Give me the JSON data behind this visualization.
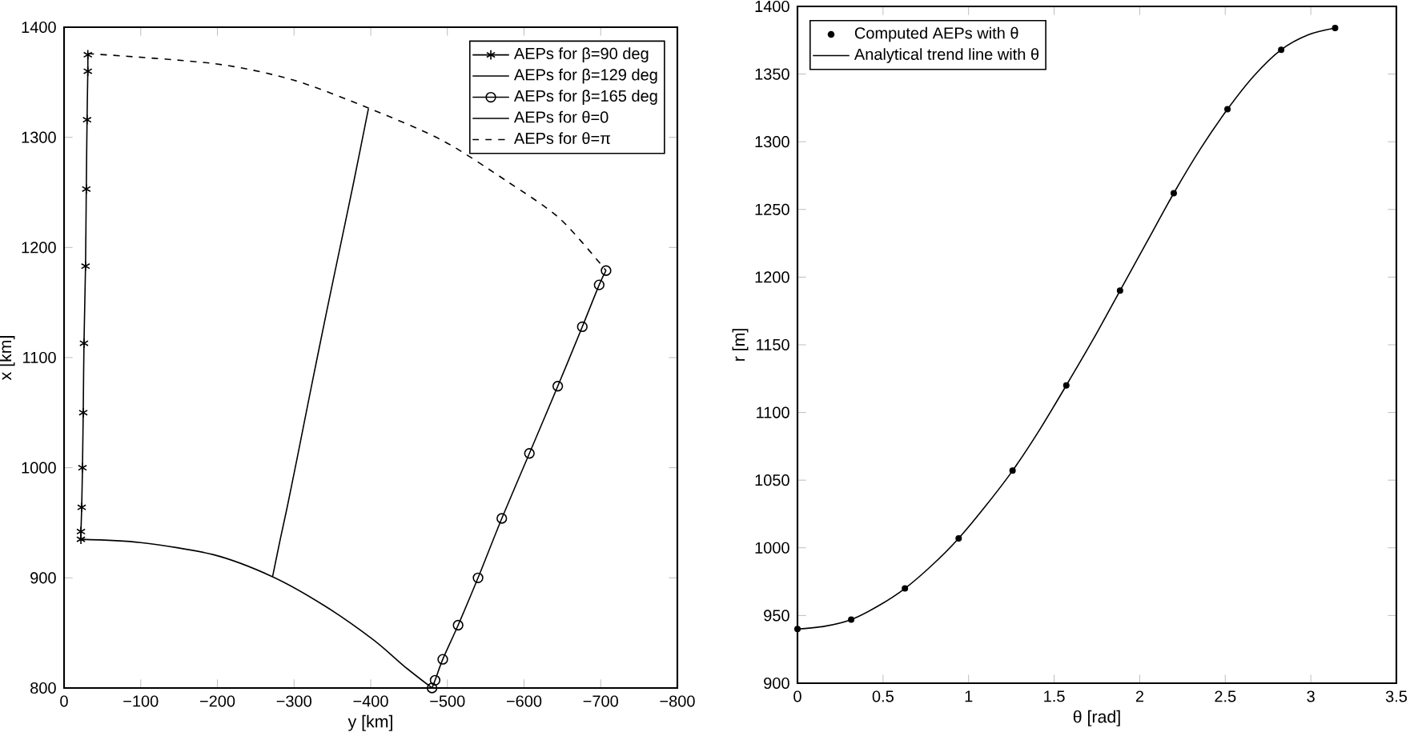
{
  "chart_data": [
    {
      "type": "line",
      "xlabel": "y [km]",
      "ylabel": "x [km]",
      "xlim": [
        0,
        -800
      ],
      "ylim": [
        800,
        1400
      ],
      "xticks": [
        0,
        {
          "value": -100,
          "label": "−100"
        },
        {
          "value": -200,
          "label": "−200"
        },
        {
          "value": -300,
          "label": "−300"
        },
        {
          "value": -400,
          "label": "−400"
        },
        {
          "value": -500,
          "label": "−500"
        },
        {
          "value": -600,
          "label": "−600"
        },
        {
          "value": -700,
          "label": "−700"
        },
        {
          "value": -800,
          "label": "−800"
        }
      ],
      "yticks": [
        800,
        900,
        1000,
        1100,
        1200,
        1300,
        1400
      ],
      "grid": false,
      "legend": "top right",
      "series": [
        {
          "name": "AEPs for β=90 deg",
          "color": "#000000",
          "marker": "cross",
          "x": [
            -31,
            -31,
            -30,
            -29,
            -28,
            -26,
            -25,
            -24,
            -23,
            -22,
            -22
          ],
          "values": [
            1375,
            1360,
            1316,
            1253,
            1183,
            1113,
            1050,
            1000,
            964,
            942,
            935
          ]
        },
        {
          "name": "AEPs for β=129 deg",
          "color": "#000000",
          "marker": "none",
          "x": [
            -272,
            -282,
            -291,
            -305,
            -323,
            -342,
            -360,
            -378,
            -397
          ],
          "values": [
            901,
            935,
            964,
            1012,
            1075,
            1140,
            1200,
            1260,
            1326
          ]
        },
        {
          "name": "AEPs for β=165 deg",
          "color": "#000000",
          "marker": "circle",
          "x": [
            -480,
            -484,
            -494,
            -514,
            -540,
            -571,
            -607,
            -644,
            -676,
            -698,
            -707
          ],
          "values": [
            800,
            807,
            826,
            857,
            900,
            954,
            1013,
            1074,
            1128,
            1166,
            1179
          ]
        },
        {
          "name": "AEPs for θ=0",
          "color": "#000000",
          "marker": "none",
          "line_style": "solid",
          "x": [
            -22,
            -100,
            -195,
            -272,
            -339,
            -403,
            -445,
            -480
          ],
          "values": [
            935,
            932,
            921,
            901,
            875,
            844,
            819,
            800
          ]
        },
        {
          "name": "AEPs for θ=π",
          "color": "#000000",
          "marker": "none",
          "line_style": "dashed",
          "x": [
            -31,
            -195,
            -299,
            -399,
            -494,
            -578,
            -647,
            -707
          ],
          "values": [
            1376,
            1367,
            1352,
            1326,
            1297,
            1260,
            1226,
            1179
          ]
        }
      ]
    },
    {
      "type": "line",
      "xlabel": "θ [rad]",
      "ylabel": "r [m]",
      "xlim": [
        0,
        3.5
      ],
      "ylim": [
        900,
        1400
      ],
      "xticks": [
        0,
        0.5,
        1,
        1.5,
        2,
        2.5,
        3,
        3.5
      ],
      "yticks": [
        900,
        950,
        1000,
        1050,
        1100,
        1150,
        1200,
        1250,
        1300,
        1350,
        1400
      ],
      "grid": false,
      "legend": "top left",
      "series": [
        {
          "name": "Computed AEPs with θ",
          "type": "scatter",
          "color": "#000000",
          "marker": "circle",
          "x": [
            0,
            0.314,
            0.628,
            0.942,
            1.257,
            1.571,
            1.885,
            2.199,
            2.513,
            2.827,
            3.142
          ],
          "values": [
            940,
            947,
            970,
            1007,
            1057,
            1120,
            1190,
            1262,
            1324,
            1368,
            1384
          ]
        },
        {
          "name": "Analytical trend line with θ",
          "type": "line",
          "color": "#000000",
          "marker": "none",
          "x": [
            0,
            0.157,
            0.314,
            0.471,
            0.628,
            0.785,
            0.942,
            1.1,
            1.257,
            1.414,
            1.571,
            1.728,
            1.885,
            2.042,
            2.199,
            2.356,
            2.513,
            2.67,
            2.827,
            2.985,
            3.142
          ],
          "values": [
            940,
            942,
            947,
            957,
            970,
            987,
            1007,
            1031,
            1057,
            1087,
            1120,
            1154,
            1190,
            1226,
            1262,
            1295,
            1324,
            1349,
            1368,
            1379,
            1384
          ]
        }
      ]
    }
  ]
}
